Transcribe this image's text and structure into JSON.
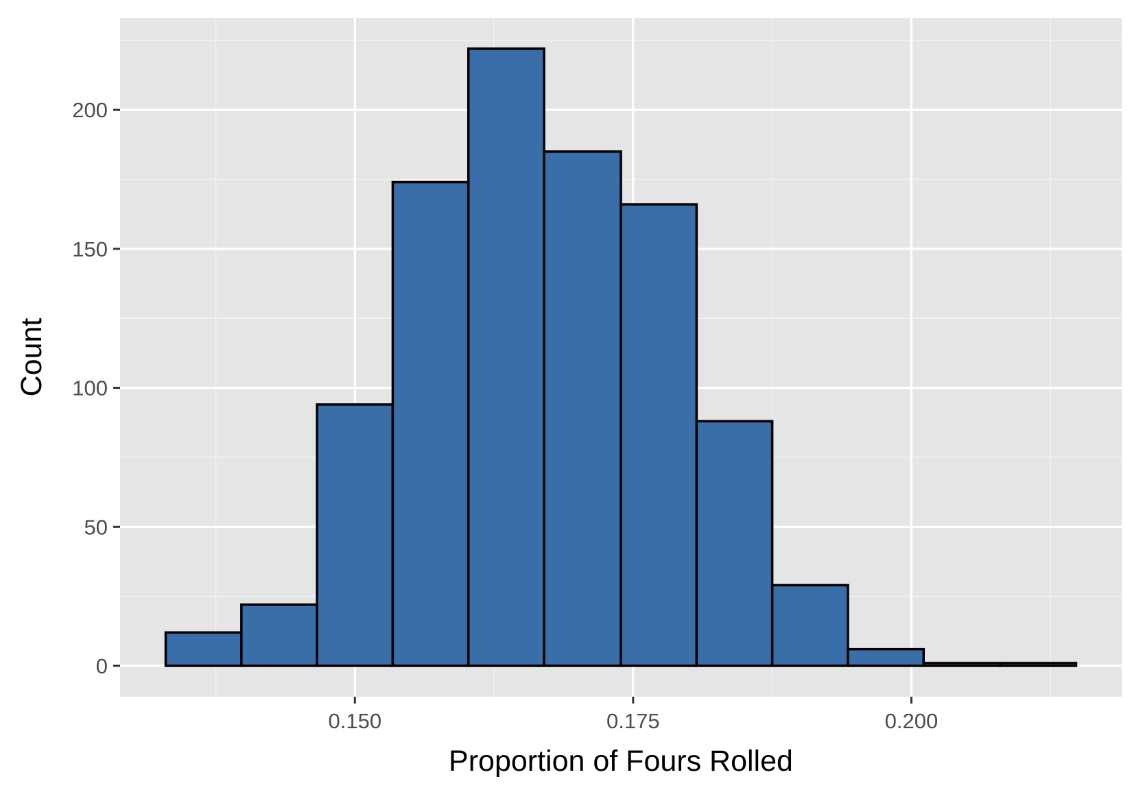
{
  "chart_data": {
    "type": "bar",
    "title": "",
    "xlabel": "Proportion of Fours Rolled",
    "ylabel": "Count",
    "bin_width": 0.006818,
    "bins": [
      {
        "x0": 0.133,
        "x1": 0.1398,
        "count": 12
      },
      {
        "x0": 0.1398,
        "x1": 0.1466,
        "count": 22
      },
      {
        "x0": 0.1466,
        "x1": 0.1534,
        "count": 94
      },
      {
        "x0": 0.1534,
        "x1": 0.1602,
        "count": 174
      },
      {
        "x0": 0.1602,
        "x1": 0.167,
        "count": 222
      },
      {
        "x0": 0.167,
        "x1": 0.1739,
        "count": 185
      },
      {
        "x0": 0.1739,
        "x1": 0.1807,
        "count": 166
      },
      {
        "x0": 0.1807,
        "x1": 0.1875,
        "count": 88
      },
      {
        "x0": 0.1875,
        "x1": 0.1943,
        "count": 29
      },
      {
        "x0": 0.1943,
        "x1": 0.2011,
        "count": 6
      },
      {
        "x0": 0.2011,
        "x1": 0.208,
        "count": 1
      },
      {
        "x0": 0.208,
        "x1": 0.2148,
        "count": 1
      }
    ],
    "xlim": [
      0.1289,
      0.2189
    ],
    "ylim": [
      -11.1,
      233.1
    ],
    "x_ticks": [
      {
        "value": 0.15,
        "label": "0.150"
      },
      {
        "value": 0.175,
        "label": "0.175"
      },
      {
        "value": 0.2,
        "label": "0.200"
      }
    ],
    "x_minor_ticks": [
      0.1375,
      0.1625,
      0.1875,
      0.2125
    ],
    "y_ticks": [
      {
        "value": 0,
        "label": "0"
      },
      {
        "value": 50,
        "label": "50"
      },
      {
        "value": 100,
        "label": "100"
      },
      {
        "value": 150,
        "label": "150"
      },
      {
        "value": 200,
        "label": "200"
      }
    ],
    "y_minor_ticks": [
      25,
      75,
      125,
      175,
      225
    ],
    "grid": true,
    "legend": "none",
    "colors": {
      "bar_fill": "#3A6EA8",
      "bar_stroke": "#000000",
      "panel_background": "#E5E5E5",
      "grid_major": "#FFFFFF",
      "grid_minor": "#F2F2F2"
    }
  }
}
